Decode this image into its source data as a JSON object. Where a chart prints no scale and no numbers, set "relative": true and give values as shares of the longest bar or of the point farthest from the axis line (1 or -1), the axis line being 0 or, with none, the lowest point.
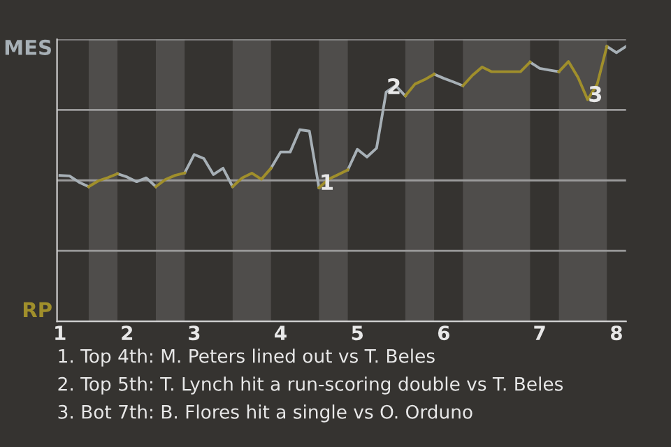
{
  "chart_data": {
    "type": "line",
    "categories": [
      "1",
      null,
      null,
      null,
      null,
      null,
      null,
      "2",
      null,
      null,
      null,
      null,
      null,
      null,
      "3",
      null,
      null,
      null,
      null,
      null,
      null,
      null,
      null,
      "4",
      null,
      null,
      null,
      null,
      null,
      null,
      null,
      "5",
      null,
      null,
      null,
      null,
      null,
      null,
      null,
      null,
      "6",
      null,
      null,
      null,
      null,
      null,
      null,
      null,
      null,
      null,
      "7",
      null,
      null,
      null,
      null,
      null,
      null,
      null,
      "8",
      null
    ],
    "relative": true,
    "series": [
      {
        "color": "#a7b0b6",
        "values": [
          0.531,
          0.529,
          0.506,
          0.49,
          null,
          null,
          0.537,
          0.525,
          0.508,
          0.522,
          0.49,
          null,
          null,
          0.54,
          0.607,
          0.592,
          0.534,
          0.557,
          0.49,
          null,
          null,
          null,
          0.557,
          0.616,
          0.616,
          0.697,
          0.692,
          0.486,
          null,
          null,
          0.551,
          0.626,
          0.598,
          0.63,
          0.834,
          0.857,
          0.82,
          null,
          null,
          0.899,
          0.884,
          0.871,
          0.857,
          null,
          null,
          null,
          null,
          null,
          null,
          0.943,
          0.92,
          0.914,
          0.908,
          null,
          null,
          null,
          null,
          1,
          0.977,
          1
        ]
      },
      {
        "color": "#a08f2b",
        "values": [
          null,
          null,
          null,
          0.49,
          0.511,
          0.523,
          0.537,
          null,
          null,
          null,
          0.49,
          0.516,
          0.531,
          0.54,
          null,
          null,
          null,
          null,
          0.49,
          0.522,
          0.539,
          0.517,
          0.557,
          null,
          null,
          null,
          null,
          0.486,
          0.517,
          0.534,
          0.551,
          null,
          null,
          null,
          null,
          null,
          0.82,
          0.863,
          0.879,
          0.899,
          null,
          null,
          0.857,
          0.895,
          0.925,
          0.908,
          0.908,
          0.908,
          0.908,
          0.943,
          null,
          null,
          0.908,
          0.945,
          0.887,
          0.806,
          0.863,
          1,
          null,
          null
        ]
      }
    ],
    "grid": "y",
    "annotations": [
      {
        "text": "1",
        "y": 0.486
      },
      {
        "text": "2",
        "y": 0.834
      },
      {
        "text": "3",
        "y": 0.806
      },
      "MES",
      "RP",
      "1. Top 4th: M. Peters lined out vs T. Beles",
      "2. Top 5th: T. Lynch hit a run-scoring double vs T. Beles",
      "3. Bot 7th: B. Flores hit a single vs O. Orduno"
    ]
  }
}
